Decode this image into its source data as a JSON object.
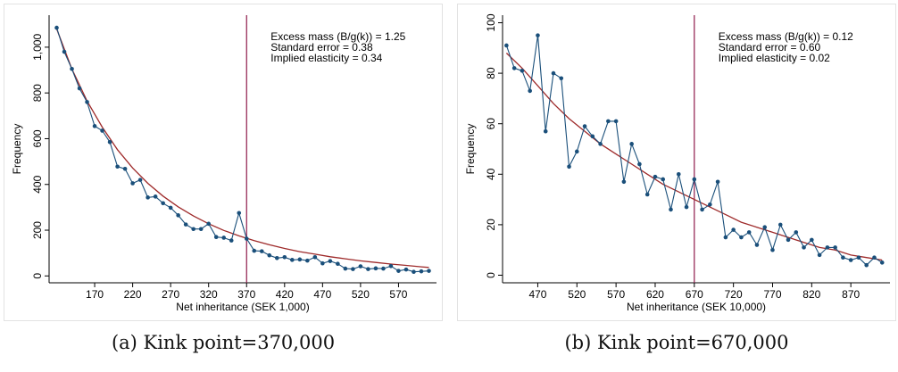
{
  "chart_data": [
    {
      "type": "line",
      "caption": "(a) Kink point=370,000",
      "xlabel": "Net inheritance (SEK 1,000)",
      "ylabel": "Frequency",
      "xlim": [
        110,
        620
      ],
      "ylim": [
        -30,
        1140
      ],
      "x_ticks": [
        170,
        220,
        270,
        320,
        370,
        420,
        470,
        520,
        570
      ],
      "y_ticks": [
        0,
        200,
        400,
        600,
        800,
        1000
      ],
      "y_tick_labels": [
        "0",
        "200",
        "400",
        "600",
        "800",
        "1,000"
      ],
      "kink_x": 370,
      "annotations": [
        "Excess mass (B/g(k)) = 1.25",
        "Standard error = 0.38",
        "Implied elasticity = 0.34"
      ],
      "colors": {
        "observed": "#1a4f7a",
        "fitted": "#9e2a2a",
        "kink": "#8e1b4a"
      },
      "series": [
        {
          "x": [
            120,
            130,
            140,
            150,
            160,
            170,
            180,
            190,
            200,
            210,
            220,
            230,
            240,
            250,
            260,
            270,
            280,
            290,
            300,
            310,
            320,
            330,
            340,
            350,
            360,
            370,
            380,
            390,
            400,
            410,
            420,
            430,
            440,
            450,
            460,
            470,
            480,
            490,
            500,
            510,
            520,
            530,
            540,
            550,
            560,
            570,
            580,
            590,
            600,
            610
          ],
          "values": [
            1085,
            980,
            905,
            820,
            760,
            655,
            635,
            585,
            478,
            468,
            405,
            420,
            343,
            347,
            318,
            298,
            265,
            225,
            205,
            205,
            228,
            170,
            167,
            155,
            275,
            163,
            110,
            108,
            90,
            78,
            82,
            70,
            72,
            67,
            82,
            55,
            65,
            53,
            32,
            30,
            42,
            30,
            33,
            32,
            43,
            22,
            28,
            18,
            20,
            22
          ]
        },
        {
          "x": [
            120,
            140,
            160,
            180,
            200,
            220,
            240,
            260,
            280,
            300,
            320,
            340,
            360,
            380,
            400,
            420,
            440,
            460,
            480,
            500,
            520,
            540,
            560,
            580,
            600,
            610
          ],
          "values": [
            1080,
            905,
            765,
            650,
            552,
            472,
            405,
            349,
            302,
            262,
            228,
            199,
            175,
            154,
            136,
            120,
            106,
            95,
            84,
            75,
            66,
            59,
            52,
            46,
            40,
            37
          ]
        }
      ]
    },
    {
      "type": "line",
      "caption": "(b) Kink point=670,000",
      "xlabel": "Net inheritance (SEK 10,000)",
      "ylabel": "Frequency",
      "xlim": [
        425,
        920
      ],
      "ylim": [
        -3,
        103
      ],
      "x_ticks": [
        470,
        520,
        570,
        620,
        670,
        720,
        770,
        820,
        870
      ],
      "y_ticks": [
        0,
        20,
        40,
        60,
        80,
        100
      ],
      "y_tick_labels": [
        "0",
        "20",
        "40",
        "60",
        "80",
        "100"
      ],
      "kink_x": 670,
      "annotations": [
        "Excess mass (B/g(k)) = 0.12",
        "Standard error = 0.60",
        "Implied elasticity = 0.02"
      ],
      "colors": {
        "observed": "#1a4f7a",
        "fitted": "#9e2a2a",
        "kink": "#8e1b4a"
      },
      "series": [
        {
          "x": [
            430,
            440,
            450,
            460,
            470,
            480,
            490,
            500,
            510,
            520,
            530,
            540,
            550,
            560,
            570,
            580,
            590,
            600,
            610,
            620,
            630,
            640,
            650,
            660,
            670,
            680,
            690,
            700,
            710,
            720,
            730,
            740,
            750,
            760,
            770,
            780,
            790,
            800,
            810,
            820,
            830,
            840,
            850,
            860,
            870,
            880,
            890,
            900,
            910
          ],
          "values": [
            91,
            82,
            81,
            73,
            95,
            57,
            80,
            78,
            43,
            49,
            59,
            55,
            52,
            61,
            61,
            37,
            52,
            44,
            32,
            39,
            38,
            26,
            40,
            27,
            38,
            26,
            28,
            37,
            15,
            18,
            15,
            17,
            12,
            19,
            10,
            20,
            14,
            17,
            11,
            14,
            8,
            11,
            11,
            7,
            6,
            7,
            4,
            7,
            5
          ]
        },
        {
          "x": [
            430,
            450,
            470,
            490,
            510,
            530,
            550,
            570,
            590,
            610,
            630,
            650,
            670,
            690,
            710,
            730,
            750,
            770,
            790,
            810,
            830,
            850,
            870,
            890,
            910
          ],
          "values": [
            88,
            82,
            75,
            68,
            62,
            57,
            52,
            48,
            44,
            40,
            36,
            33,
            30,
            27,
            24,
            21,
            19,
            17,
            15,
            13,
            11,
            10,
            8,
            7,
            6
          ]
        }
      ]
    }
  ]
}
